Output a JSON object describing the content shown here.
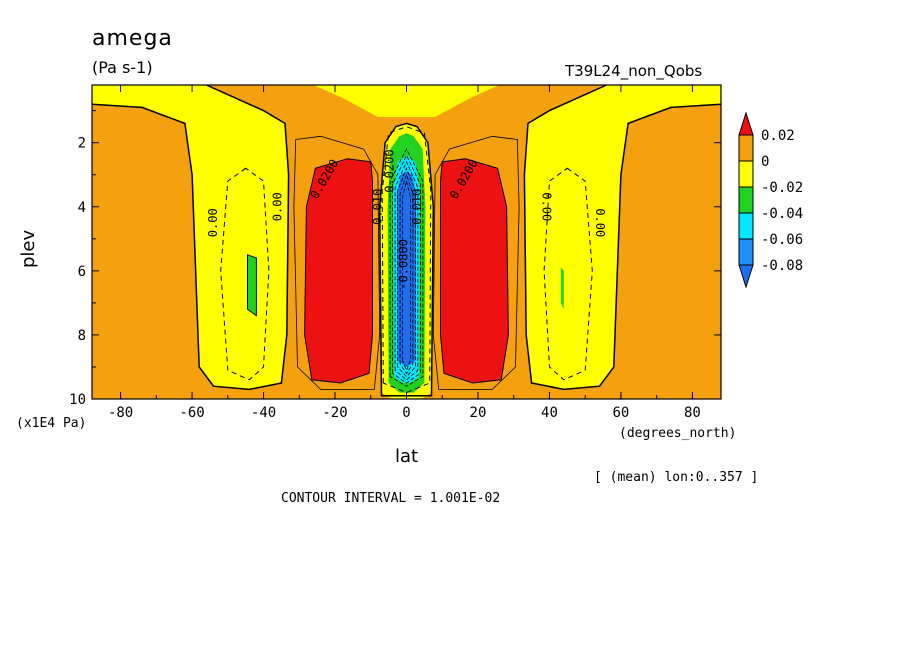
{
  "chart_data": {
    "type": "heatmap",
    "title": "amega",
    "units": "(Pa s-1)",
    "run_label": "T39L24_non_Qobs",
    "xlabel": "lat",
    "x_units": "(degrees_north)",
    "ylabel": "plev",
    "y_units": "(x1E4 Pa)",
    "xlim": [
      -88,
      88
    ],
    "ylim": [
      10,
      0.2
    ],
    "x_ticks": [
      -80,
      -60,
      -40,
      -20,
      0,
      20,
      40,
      60,
      80
    ],
    "y_ticks": [
      2,
      4,
      6,
      8,
      10
    ],
    "x_tick_labels": [
      "-80",
      "-60",
      "-40",
      "-20",
      "0",
      "20",
      "40",
      "60",
      "80"
    ],
    "y_tick_labels": [
      "2",
      "4",
      "6",
      "8",
      "10"
    ],
    "legend": {
      "placement": "right",
      "levels": [
        "0.02",
        "0",
        "-0.02",
        "-0.04",
        "-0.06",
        "-0.08"
      ],
      "colors": [
        "#ee1111",
        "#f5a00f",
        "#ffff00",
        "#22d222",
        "#00e8ff",
        "#1e90ff",
        "#1e6ef0"
      ]
    },
    "contour_labels": [
      "0.00",
      "0.00",
      "0.0200",
      "0.010",
      "-0.0200",
      "0.010",
      "-0.0800",
      "0.0200",
      "0.00",
      "0.00"
    ],
    "regions": [
      {
        "level": "0 to 0.02",
        "color": "#f5a00f",
        "desc": "background"
      },
      {
        "level": "0.02+",
        "color": "#ee1111",
        "lat_range": [
          -29,
          -10
        ],
        "plev_range": [
          2.6,
          9.4
        ]
      },
      {
        "level": "0.02+",
        "color": "#ee1111",
        "lat_range": [
          10,
          29
        ],
        "plev_range": [
          2.6,
          9.4
        ]
      },
      {
        "level": "-0.02 to 0",
        "color": "#ffff00",
        "lat_range": [
          -57,
          -34
        ],
        "plev_range": [
          1.2,
          9.6
        ]
      },
      {
        "level": "-0.02 to 0",
        "color": "#ffff00",
        "lat_range": [
          34,
          57
        ],
        "plev_range": [
          1.2,
          9.6
        ]
      },
      {
        "level": "-0.02 to 0",
        "color": "#ffff00",
        "lat_range": [
          -7,
          7
        ],
        "plev_range": [
          1.6,
          9.8
        ]
      },
      {
        "level": "-0.04 to -0.02",
        "color": "#22d222",
        "lat_range": [
          -5,
          5
        ],
        "plev_range": [
          1.8,
          9.5
        ]
      },
      {
        "level": "-0.06 to -0.04",
        "color": "#00e8ff",
        "lat_range": [
          -3.5,
          3.5
        ],
        "plev_range": [
          2.5,
          9.3
        ]
      },
      {
        "level": "< -0.06",
        "color": "#1e6ef0",
        "lat_range": [
          -2.5,
          2.5
        ],
        "plev_range": [
          3.0,
          8.8
        ]
      }
    ],
    "footer": {
      "mean_info": "[ (mean) lon:0..357 ]",
      "contour_interval": "CONTOUR INTERVAL = 1.001E-02"
    }
  }
}
